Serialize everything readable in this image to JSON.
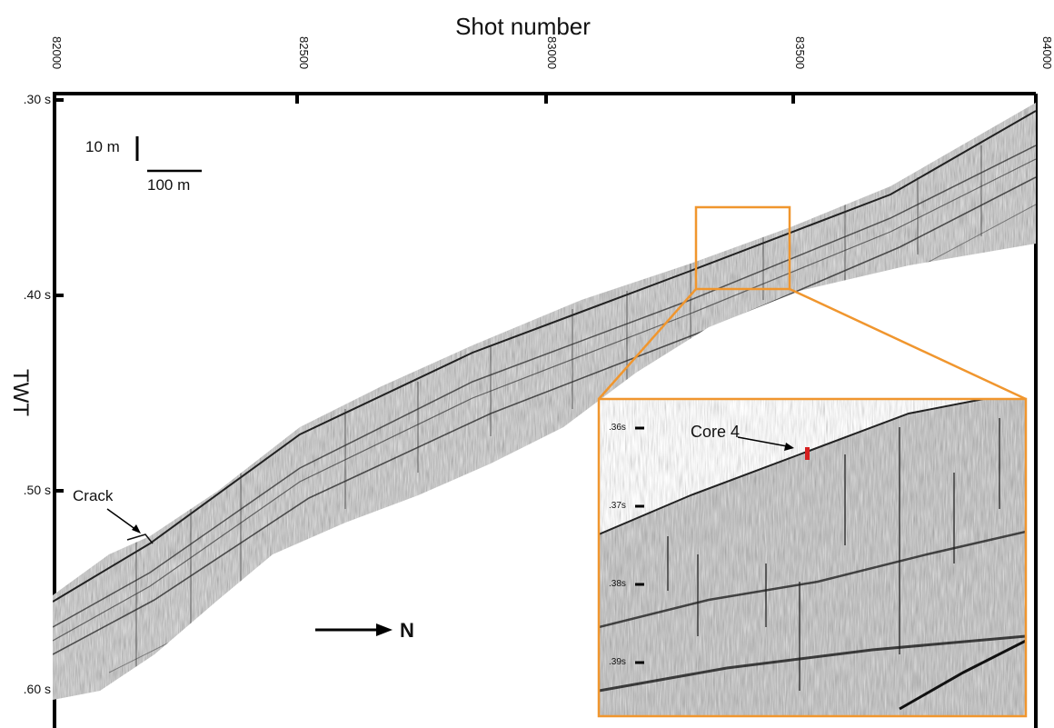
{
  "figure": {
    "x_axis_title": "Shot number",
    "x_ticks": [
      "82000",
      "82500",
      "83000",
      "83500",
      "84000"
    ],
    "y_axis_title": "TWT",
    "y_ticks": [
      ".30 s",
      ".40 s",
      ".50 s",
      ".60 s"
    ],
    "scale_vertical": "10 m",
    "scale_horizontal": "100 m",
    "annotation_crack": "Crack",
    "direction_label": "N",
    "inset": {
      "core_label": "Core 4",
      "y_ticks": [
        ".36s",
        ".37s",
        ".38s",
        ".39s"
      ],
      "frame_color": "#f0962e",
      "core_marker_color": "#d62020"
    }
  }
}
